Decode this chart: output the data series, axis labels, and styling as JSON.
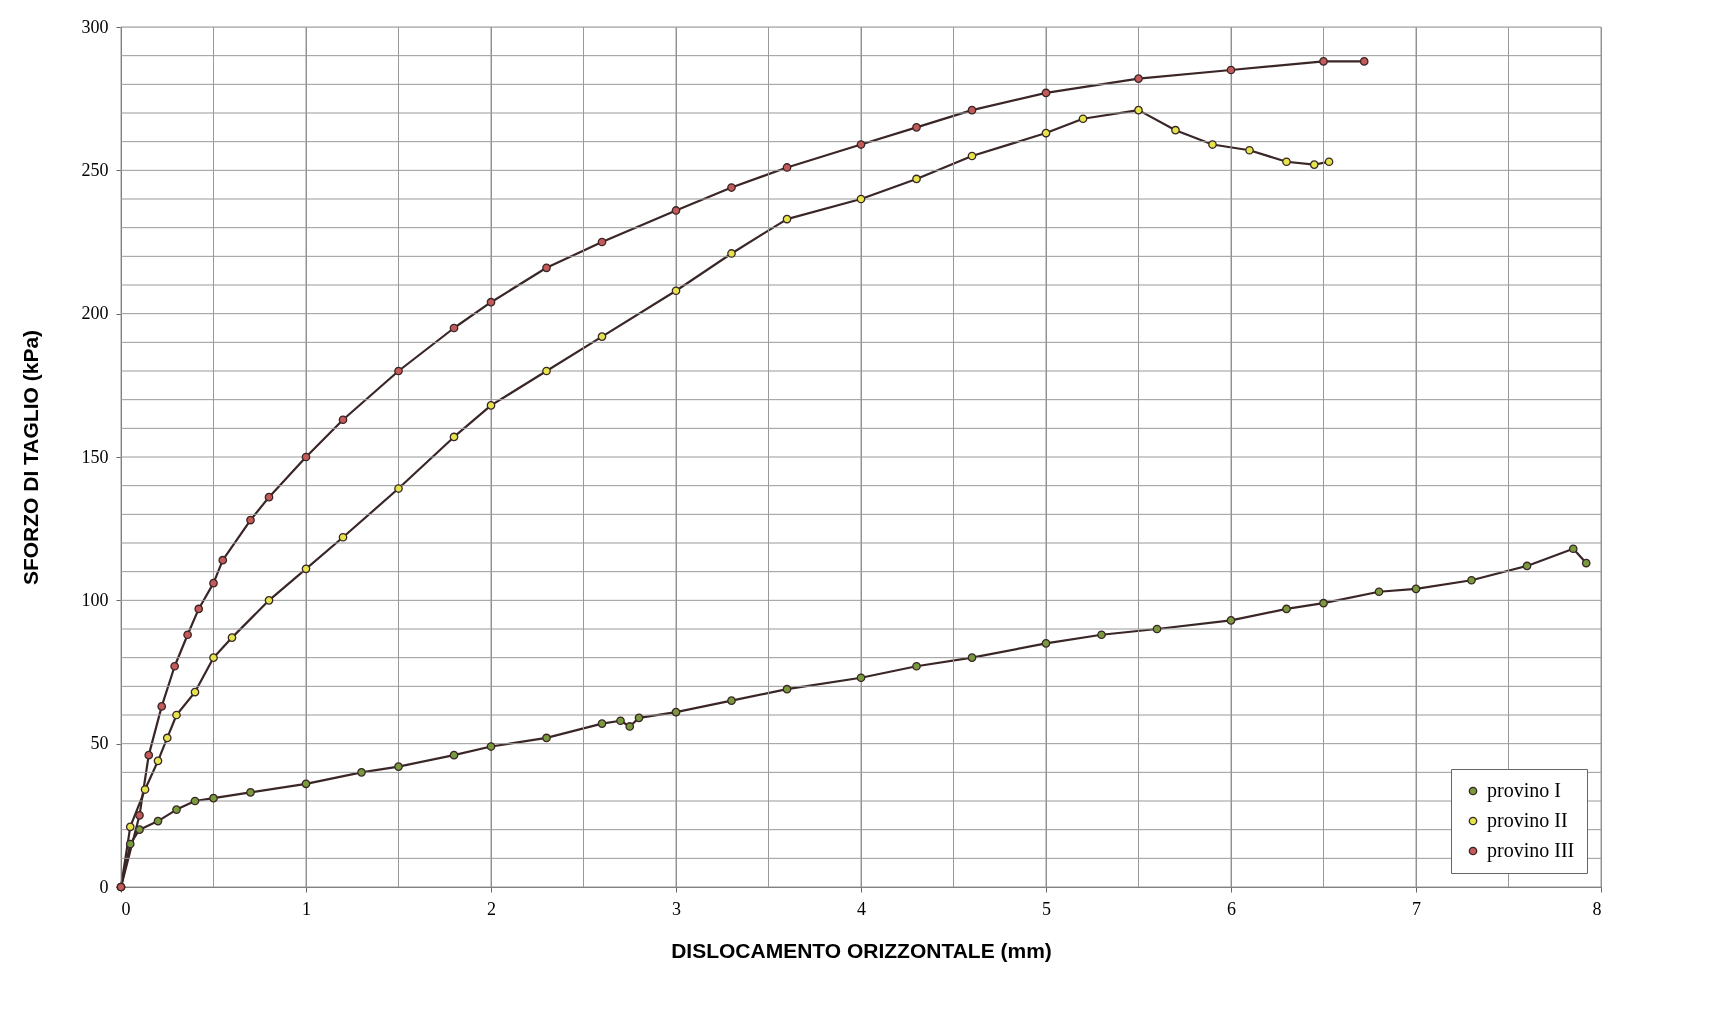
{
  "chart_data": {
    "type": "line",
    "xlabel": "DISLOCAMENTO ORIZZONTALE (mm)",
    "ylabel": "SFORZO DI TAGLIO (kPa)",
    "xlim": [
      0,
      8
    ],
    "ylim": [
      0,
      300
    ],
    "xticks": [
      0,
      1,
      2,
      3,
      4,
      5,
      6,
      7,
      8
    ],
    "yticks": [
      0,
      50,
      100,
      150,
      200,
      250,
      300
    ],
    "grid": true,
    "legend": "bottom right",
    "marker": "circle",
    "line_style": "solid",
    "series": [
      {
        "name": "provino I",
        "color": "#7a9a3e",
        "x": [
          0,
          0.05,
          0.1,
          0.2,
          0.3,
          0.4,
          0.5,
          0.7,
          1.0,
          1.3,
          1.5,
          1.8,
          2.0,
          2.3,
          2.6,
          2.7,
          2.75,
          2.8,
          3.0,
          3.3,
          3.6,
          4.0,
          4.3,
          4.6,
          5.0,
          5.3,
          5.6,
          6.0,
          6.3,
          6.5,
          6.8,
          7.0,
          7.3,
          7.6,
          7.85,
          7.92
        ],
        "values": [
          0,
          15,
          20,
          23,
          27,
          30,
          31,
          33,
          36,
          40,
          42,
          46,
          49,
          52,
          57,
          58,
          56,
          59,
          61,
          65,
          69,
          73,
          77,
          80,
          85,
          88,
          90,
          93,
          97,
          99,
          103,
          104,
          107,
          112,
          118,
          113
        ]
      },
      {
        "name": "provino II",
        "color": "#e4e44c",
        "x": [
          0,
          0.05,
          0.13,
          0.2,
          0.25,
          0.3,
          0.4,
          0.5,
          0.6,
          0.8,
          1.0,
          1.2,
          1.5,
          1.8,
          2.0,
          2.3,
          2.6,
          3.0,
          3.3,
          3.6,
          4.0,
          4.3,
          4.6,
          5.0,
          5.2,
          5.5,
          5.7,
          5.9,
          6.1,
          6.3,
          6.45,
          6.53
        ],
        "values": [
          0,
          21,
          34,
          44,
          52,
          60,
          68,
          80,
          87,
          100,
          111,
          122,
          139,
          157,
          168,
          180,
          192,
          208,
          221,
          233,
          240,
          247,
          255,
          263,
          268,
          271,
          264,
          259,
          257,
          253,
          252,
          253
        ]
      },
      {
        "name": "provino III",
        "color": "#c45a5a",
        "x": [
          0,
          0.1,
          0.15,
          0.22,
          0.29,
          0.36,
          0.42,
          0.5,
          0.55,
          0.7,
          0.8,
          1.0,
          1.2,
          1.5,
          1.8,
          2.0,
          2.3,
          2.6,
          3.0,
          3.3,
          3.6,
          4.0,
          4.3,
          4.6,
          5.0,
          5.5,
          6.0,
          6.5,
          6.72
        ],
        "values": [
          0,
          25,
          46,
          63,
          77,
          88,
          97,
          106,
          114,
          128,
          136,
          150,
          163,
          180,
          195,
          204,
          216,
          225,
          236,
          244,
          251,
          259,
          265,
          271,
          277,
          282,
          285,
          288,
          288
        ]
      }
    ]
  }
}
